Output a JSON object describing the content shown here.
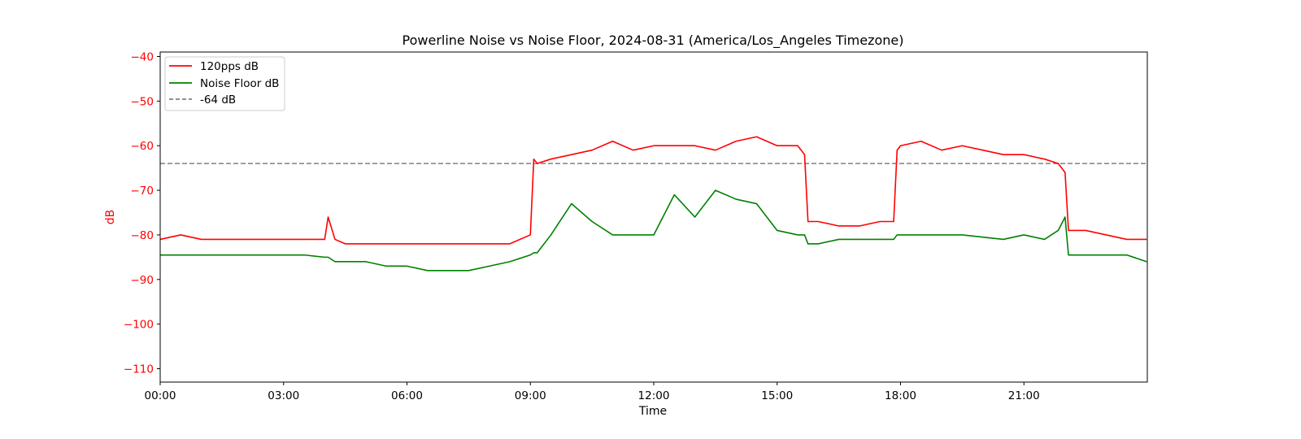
{
  "chart_data": {
    "type": "line",
    "title": "Powerline Noise vs Noise Floor, 2024-08-31 (America/Los_Angeles Timezone)",
    "xlabel": "Time",
    "ylabel": "dB",
    "xlim": [
      "00:00",
      "24:00"
    ],
    "ylim": [
      -113,
      -39
    ],
    "x_ticks": [
      "00:00",
      "03:00",
      "06:00",
      "09:00",
      "12:00",
      "15:00",
      "18:00",
      "21:00"
    ],
    "y_ticks": [
      -40,
      -50,
      -60,
      -70,
      -80,
      -90,
      -100,
      -110
    ],
    "grid": false,
    "legend_position": "top-left",
    "colors": {
      "series_120pps": "#ff0000",
      "noise_floor": "#008000",
      "reference": "#808080",
      "y_axis": "#ff0000"
    },
    "x": [
      "00:00",
      "00:30",
      "01:00",
      "01:30",
      "02:00",
      "02:30",
      "03:00",
      "03:30",
      "04:00",
      "04:05",
      "04:15",
      "04:30",
      "05:00",
      "05:30",
      "06:00",
      "06:30",
      "07:00",
      "07:30",
      "08:00",
      "08:30",
      "09:00",
      "09:05",
      "09:10",
      "09:30",
      "10:00",
      "10:30",
      "11:00",
      "11:30",
      "12:00",
      "12:30",
      "13:00",
      "13:30",
      "14:00",
      "14:30",
      "15:00",
      "15:30",
      "15:40",
      "15:45",
      "16:00",
      "16:30",
      "17:00",
      "17:30",
      "17:50",
      "17:55",
      "18:00",
      "18:30",
      "19:00",
      "19:30",
      "20:00",
      "20:30",
      "21:00",
      "21:30",
      "21:50",
      "22:00",
      "22:05",
      "22:30",
      "23:00",
      "23:30",
      "23:59"
    ],
    "series": [
      {
        "name": "120pps dB",
        "values": [
          -81,
          -80,
          -81,
          -81,
          -81,
          -81,
          -81,
          -81,
          -81,
          -76,
          -81,
          -82,
          -82,
          -82,
          -82,
          -82,
          -82,
          -82,
          -82,
          -82,
          -80,
          -63,
          -64,
          -63,
          -62,
          -61,
          -59,
          -61,
          -60,
          -60,
          -60,
          -61,
          -59,
          -58,
          -60,
          -60,
          -62,
          -77,
          -77,
          -78,
          -78,
          -77,
          -77,
          -61,
          -60,
          -59,
          -61,
          -60,
          -61,
          -62,
          -62,
          -63,
          -64,
          -66,
          -79,
          -79,
          -80,
          -81,
          -81
        ]
      },
      {
        "name": "Noise Floor dB",
        "values": [
          -84.5,
          -84.5,
          -84.5,
          -84.5,
          -84.5,
          -84.5,
          -84.5,
          -84.5,
          -85,
          -85,
          -86,
          -86,
          -86,
          -87,
          -87,
          -88,
          -88,
          -88,
          -87,
          -86,
          -84.5,
          -84,
          -84,
          -80,
          -73,
          -77,
          -80,
          -80,
          -80,
          -71,
          -76,
          -70,
          -72,
          -73,
          -79,
          -80,
          -80,
          -82,
          -82,
          -81,
          -81,
          -81,
          -81,
          -80,
          -80,
          -80,
          -80,
          -80,
          -80.5,
          -81,
          -80,
          -81,
          -79,
          -76,
          -84.5,
          -84.5,
          -84.5,
          -84.5,
          -86
        ]
      },
      {
        "name": "-64 dB",
        "constant": -64
      }
    ]
  }
}
